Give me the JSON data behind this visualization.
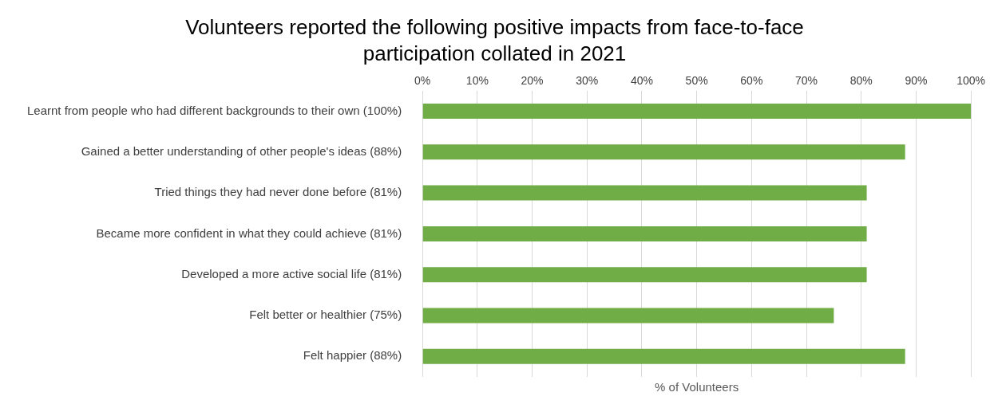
{
  "chart_data": {
    "type": "bar",
    "orientation": "horizontal",
    "title": "Volunteers reported the following positive impacts from face-to-face participation collated in 2021",
    "xlabel": "% of Volunteers",
    "categories": [
      "Learnt from people who had different backgrounds to their own (100%)",
      "Gained a better understanding of other people's ideas (88%)",
      "Tried things they had never done before (81%)",
      "Became more confident in what they could achieve (81%)",
      "Developed a more active social life (81%)",
      "Felt better or healthier (75%)",
      "Felt happier (88%)"
    ],
    "values": [
      100,
      88,
      81,
      81,
      81,
      75,
      88
    ],
    "color": "#70ad47",
    "xlim": [
      0,
      100
    ],
    "xticks": [
      {
        "value": 0,
        "label": "0%"
      },
      {
        "value": 10,
        "label": "10%"
      },
      {
        "value": 20,
        "label": "20%"
      },
      {
        "value": 30,
        "label": "30%"
      },
      {
        "value": 40,
        "label": "40%"
      },
      {
        "value": 50,
        "label": "50%"
      },
      {
        "value": 60,
        "label": "60%"
      },
      {
        "value": 70,
        "label": "70%"
      },
      {
        "value": 80,
        "label": "80%"
      },
      {
        "value": 90,
        "label": "90%"
      },
      {
        "value": 100,
        "label": "100%"
      }
    ],
    "grid": "x",
    "legend": false
  }
}
